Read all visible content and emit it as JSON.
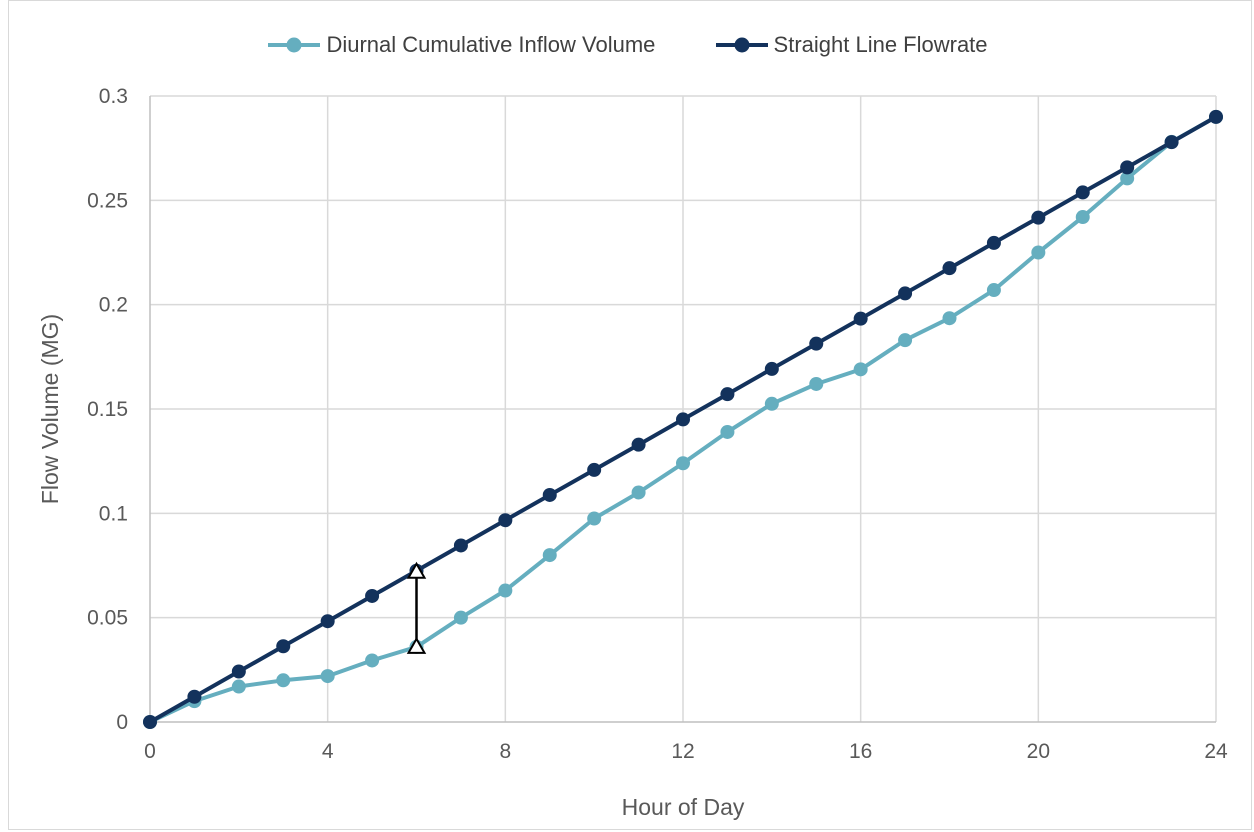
{
  "chart_data": {
    "type": "line",
    "title": "",
    "xlabel": "Hour of Day",
    "ylabel": "Flow Volume (MG)",
    "xlim": [
      0,
      24
    ],
    "ylim": [
      0,
      0.3
    ],
    "x_ticks": [
      "0",
      "4",
      "8",
      "12",
      "16",
      "20",
      "24"
    ],
    "y_ticks": [
      "0",
      "0.05",
      "0.1",
      "0.15",
      "0.2",
      "0.25",
      "0.3"
    ],
    "grid": true,
    "legend_position": "top",
    "x": [
      0,
      1,
      2,
      3,
      4,
      5,
      6,
      7,
      8,
      9,
      10,
      11,
      12,
      13,
      14,
      15,
      16,
      17,
      18,
      19,
      20,
      21,
      22,
      23,
      24
    ],
    "series": [
      {
        "name": "Diurnal Cumulative Inflow Volume",
        "color": "#65aebf",
        "values": [
          0,
          0.01,
          0.017,
          0.02,
          0.022,
          0.0295,
          0.036,
          0.05,
          0.063,
          0.08,
          0.0975,
          0.11,
          0.124,
          0.139,
          0.1525,
          0.162,
          0.169,
          0.183,
          0.1935,
          0.207,
          0.225,
          0.242,
          0.2605,
          0.278,
          0.29
        ]
      },
      {
        "name": "Straight Line Flowrate",
        "color": "#13325c",
        "values": [
          0,
          0.0121,
          0.0242,
          0.0363,
          0.0483,
          0.0604,
          0.0725,
          0.0846,
          0.0967,
          0.1088,
          0.1208,
          0.1329,
          0.145,
          0.1571,
          0.1692,
          0.1813,
          0.1933,
          0.2054,
          0.2175,
          0.2296,
          0.2417,
          0.2538,
          0.2658,
          0.2779,
          0.29
        ]
      }
    ],
    "annotations": [
      {
        "type": "double-arrow",
        "x": 6,
        "y_from": 0.036,
        "y_to": 0.0725,
        "color": "#000000"
      }
    ]
  }
}
